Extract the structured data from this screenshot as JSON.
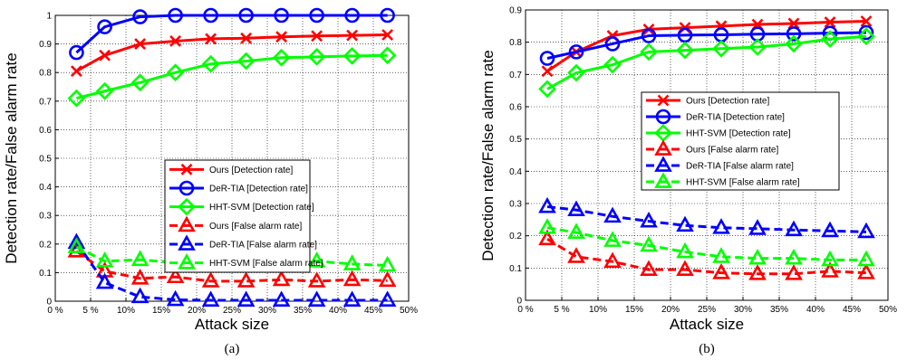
{
  "chart_data": [
    {
      "type": "line",
      "panel_label": "(a)",
      "xlabel": "Attack size",
      "ylabel": "Detection rate/False alarm rate",
      "x": [
        3,
        7,
        12,
        17,
        22,
        27,
        32,
        37,
        42,
        47
      ],
      "xlim": [
        0,
        50
      ],
      "ylim": [
        0,
        1
      ],
      "x_ticks": [
        0,
        5,
        10,
        15,
        20,
        25,
        30,
        35,
        40,
        45,
        50
      ],
      "x_tick_labels": [
        "0 %",
        "5 %",
        "10%",
        "15%",
        "20%",
        "25%",
        "30%",
        "35%",
        "40%",
        "45%",
        "50%"
      ],
      "y_ticks": [
        0,
        0.1,
        0.2,
        0.3,
        0.4,
        0.5,
        0.6,
        0.7,
        0.8,
        0.9,
        1
      ],
      "y_tick_labels": [
        "0",
        "0.1",
        "0.2",
        "0.3",
        "0.4",
        "0.5",
        "0.6",
        "0.7",
        "0.8",
        "0.9",
        "1"
      ],
      "grid": true,
      "legend_position": "center-right",
      "series": [
        {
          "name": "Ours [Detection rate]",
          "color": "#ff0000",
          "marker": "x",
          "dashed": false,
          "values": [
            0.805,
            0.86,
            0.9,
            0.91,
            0.918,
            0.92,
            0.925,
            0.928,
            0.93,
            0.932
          ]
        },
        {
          "name": "DeR-TIA [Detection rate]",
          "color": "#0000ff",
          "marker": "circle",
          "dashed": false,
          "values": [
            0.87,
            0.96,
            0.995,
            1.0,
            1.0,
            1.0,
            1.0,
            1.0,
            1.0,
            1.0
          ]
        },
        {
          "name": "HHT-SVM [Detection rate]",
          "color": "#00ff00",
          "marker": "diamond",
          "dashed": false,
          "values": [
            0.71,
            0.735,
            0.765,
            0.8,
            0.83,
            0.84,
            0.852,
            0.855,
            0.858,
            0.86
          ]
        },
        {
          "name": "Ours [False alarm rate]",
          "color": "#ff0000",
          "marker": "triangle",
          "dashed": true,
          "values": [
            0.175,
            0.105,
            0.08,
            0.085,
            0.07,
            0.07,
            0.075,
            0.07,
            0.075,
            0.072
          ]
        },
        {
          "name": "DeR-TIA [False alarm rate]",
          "color": "#0000ff",
          "marker": "triangle",
          "dashed": true,
          "values": [
            0.205,
            0.065,
            0.015,
            0.005,
            0.003,
            0.003,
            0.003,
            0.003,
            0.003,
            0.003
          ]
        },
        {
          "name": "HHT-SVM [False alarm rate]",
          "color": "#00ff00",
          "marker": "triangle",
          "dashed": true,
          "values": [
            0.19,
            0.14,
            0.145,
            0.135,
            0.135,
            0.138,
            0.132,
            0.14,
            0.13,
            0.125
          ]
        }
      ]
    },
    {
      "type": "line",
      "panel_label": "(b)",
      "xlabel": "Attack size",
      "ylabel": "Detection rate/False alarm rate",
      "x": [
        3,
        7,
        12,
        17,
        22,
        27,
        32,
        37,
        42,
        47
      ],
      "xlim": [
        0,
        50
      ],
      "ylim": [
        0,
        0.9
      ],
      "x_ticks": [
        0,
        5,
        10,
        15,
        20,
        25,
        30,
        35,
        40,
        45,
        50
      ],
      "x_tick_labels": [
        "0 %",
        "5 %",
        "10%",
        "15%",
        "20%",
        "25%",
        "30%",
        "35%",
        "40%",
        "45%",
        "50%"
      ],
      "y_ticks": [
        0,
        0.1,
        0.2,
        0.3,
        0.4,
        0.5,
        0.6,
        0.7,
        0.8,
        0.9
      ],
      "y_tick_labels": [
        "0",
        "0.1",
        "0.2",
        "0.3",
        "0.4",
        "0.5",
        "0.6",
        "0.7",
        "0.8",
        "0.9"
      ],
      "grid": true,
      "legend_position": "center-right",
      "series": [
        {
          "name": "Ours [Detection rate]",
          "color": "#ff0000",
          "marker": "x",
          "dashed": false,
          "values": [
            0.71,
            0.77,
            0.82,
            0.84,
            0.845,
            0.85,
            0.855,
            0.858,
            0.862,
            0.865
          ]
        },
        {
          "name": "DeR-TIA [Detection rate]",
          "color": "#0000ff",
          "marker": "circle",
          "dashed": false,
          "values": [
            0.75,
            0.77,
            0.795,
            0.82,
            0.822,
            0.823,
            0.825,
            0.826,
            0.828,
            0.83
          ]
        },
        {
          "name": "HHT-SVM [Detection rate]",
          "color": "#00ff00",
          "marker": "diamond",
          "dashed": false,
          "values": [
            0.655,
            0.705,
            0.73,
            0.77,
            0.775,
            0.78,
            0.785,
            0.795,
            0.81,
            0.818
          ]
        },
        {
          "name": "Ours [False alarm rate]",
          "color": "#ff0000",
          "marker": "triangle",
          "dashed": true,
          "values": [
            0.19,
            0.135,
            0.12,
            0.095,
            0.095,
            0.085,
            0.082,
            0.082,
            0.09,
            0.085
          ]
        },
        {
          "name": "DeR-TIA [False alarm rate]",
          "color": "#0000ff",
          "marker": "triangle",
          "dashed": true,
          "values": [
            0.29,
            0.28,
            0.26,
            0.245,
            0.232,
            0.225,
            0.222,
            0.218,
            0.215,
            0.212
          ]
        },
        {
          "name": "HHT-SVM [False alarm rate]",
          "color": "#00ff00",
          "marker": "triangle",
          "dashed": true,
          "values": [
            0.225,
            0.21,
            0.185,
            0.17,
            0.15,
            0.135,
            0.13,
            0.13,
            0.125,
            0.125
          ]
        }
      ]
    }
  ]
}
